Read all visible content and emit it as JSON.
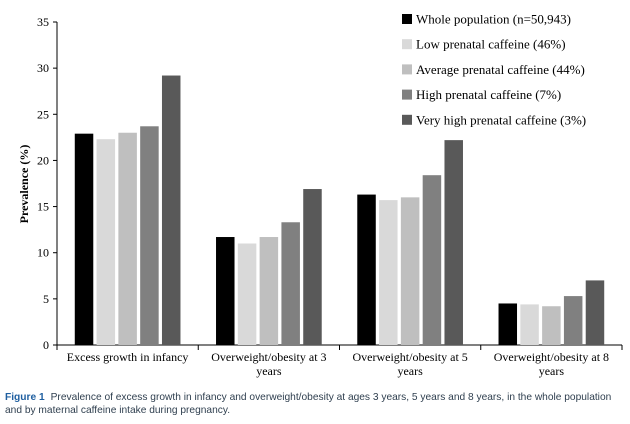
{
  "chart_data": {
    "type": "bar",
    "ylabel": "Prevalence (%)",
    "xlabel": "",
    "ylim": [
      0,
      35
    ],
    "yticks": [
      0,
      5,
      10,
      15,
      20,
      25,
      30,
      35
    ],
    "grid": false,
    "legend_position": "top-right",
    "categories": [
      "Excess growth in infancy",
      "Overweight/obesity at 3 years",
      "Overweight/obesity at 5 years",
      "Overweight/obesity at 8 years"
    ],
    "category_lines": [
      [
        "Excess growth in infancy"
      ],
      [
        "Overweight/obesity at 3",
        "years"
      ],
      [
        "Overweight/obesity at 5",
        "years"
      ],
      [
        "Overweight/obesity at 8",
        "years"
      ]
    ],
    "series": [
      {
        "name": "Whole population (n=50,943)",
        "color": "#000000",
        "values": [
          22.9,
          11.7,
          16.3,
          4.5
        ]
      },
      {
        "name": "Low prenatal caffeine (46%)",
        "color": "#d9d9d9",
        "values": [
          22.3,
          11.0,
          15.7,
          4.4
        ]
      },
      {
        "name": "Average prenatal caffeine (44%)",
        "color": "#bfbfbf",
        "values": [
          23.0,
          11.7,
          16.0,
          4.2
        ]
      },
      {
        "name": "High prenatal caffeine (7%)",
        "color": "#808080",
        "values": [
          23.7,
          13.3,
          18.4,
          5.3
        ]
      },
      {
        "name": "Very high prenatal caffeine (3%)",
        "color": "#595959",
        "values": [
          29.2,
          16.9,
          22.2,
          7.0
        ]
      }
    ]
  },
  "caption": {
    "label": "Figure 1",
    "text": "Prevalence of excess growth in infancy and overweight/obesity at ages 3 years, 5 years and 8 years, in the whole population and by maternal caffeine intake during pregnancy."
  }
}
